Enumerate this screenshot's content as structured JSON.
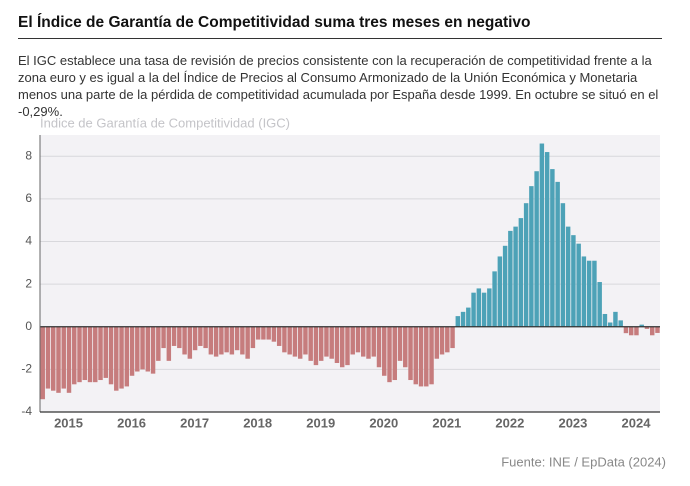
{
  "chart_data": {
    "type": "bar",
    "title": "El Índice de Garantía de Competitividad suma tres meses en negativo",
    "subtitle": "El IGC establece una tasa de revisión de precios consistente con la recuperación de competitividad frente a la zona euro y es igual a la del Índice de Precios al Consumo Armonizado de la Unión Económica y Monetaria menos una parte de la pérdida de competitividad acumulada por España desde 1999. En octubre se situó en el -0,29%.",
    "ylabel": "Índice de Garantía de Competitividad (IGC)",
    "source": "Fuente: INE / EpData (2024)",
    "categories": [
      null,
      null,
      null,
      null,
      null,
      null,
      "2015",
      null,
      null,
      null,
      null,
      null,
      null,
      null,
      null,
      null,
      null,
      null,
      "2016",
      null,
      null,
      null,
      null,
      null,
      null,
      null,
      null,
      null,
      null,
      null,
      "2017",
      null,
      null,
      null,
      null,
      null,
      null,
      null,
      null,
      null,
      null,
      null,
      "2018",
      null,
      null,
      null,
      null,
      null,
      null,
      null,
      null,
      null,
      null,
      null,
      "2019",
      null,
      null,
      null,
      null,
      null,
      null,
      null,
      null,
      null,
      null,
      null,
      "2020",
      null,
      null,
      null,
      null,
      null,
      null,
      null,
      null,
      null,
      null,
      null,
      "2021",
      null,
      null,
      null,
      null,
      null,
      null,
      null,
      null,
      null,
      null,
      null,
      "2022",
      null,
      null,
      null,
      null,
      null,
      null,
      null,
      null,
      null,
      null,
      null,
      "2023",
      null,
      null,
      null,
      null,
      null,
      null,
      null,
      null,
      null,
      null,
      null,
      "2024",
      null,
      null,
      null
    ],
    "values": [
      -3.4,
      -2.9,
      -3.0,
      -3.1,
      -2.9,
      -3.1,
      -2.7,
      -2.6,
      -2.5,
      -2.6,
      -2.6,
      -2.5,
      -2.4,
      -2.7,
      -3.0,
      -2.9,
      -2.8,
      -2.3,
      -2.1,
      -2.0,
      -2.1,
      -2.2,
      -1.6,
      -1.0,
      -1.6,
      -0.9,
      -1.0,
      -1.3,
      -1.5,
      -1.1,
      -0.9,
      -1.0,
      -1.3,
      -1.4,
      -1.3,
      -1.2,
      -1.3,
      -1.1,
      -1.3,
      -1.5,
      -1.0,
      -0.6,
      -0.6,
      -0.6,
      -0.7,
      -0.9,
      -1.2,
      -1.3,
      -1.4,
      -1.5,
      -1.3,
      -1.6,
      -1.8,
      -1.6,
      -1.4,
      -1.5,
      -1.7,
      -1.9,
      -1.8,
      -1.3,
      -1.2,
      -1.4,
      -1.5,
      -1.4,
      -1.9,
      -2.3,
      -2.6,
      -2.5,
      -1.6,
      -1.9,
      -2.5,
      -2.7,
      -2.8,
      -2.8,
      -2.7,
      -1.5,
      -1.3,
      -1.2,
      -1.0,
      0.5,
      0.7,
      0.9,
      1.6,
      1.8,
      1.6,
      1.8,
      2.6,
      3.3,
      3.8,
      4.5,
      4.7,
      5.1,
      5.8,
      6.6,
      7.3,
      8.6,
      8.2,
      7.4,
      6.8,
      5.8,
      4.7,
      4.3,
      3.9,
      3.3,
      3.1,
      3.1,
      2.1,
      0.6,
      0.2,
      0.7,
      0.3,
      -0.3,
      -0.4,
      -0.4,
      0.1,
      -0.1,
      -0.4,
      -0.29
    ],
    "colors": {
      "positive": "#4da2b7",
      "negative": "#c67c7d"
    },
    "ylim": [
      -4,
      9
    ],
    "yticks": [
      -4,
      -2,
      0,
      2,
      4,
      6,
      8
    ],
    "grid": true
  }
}
